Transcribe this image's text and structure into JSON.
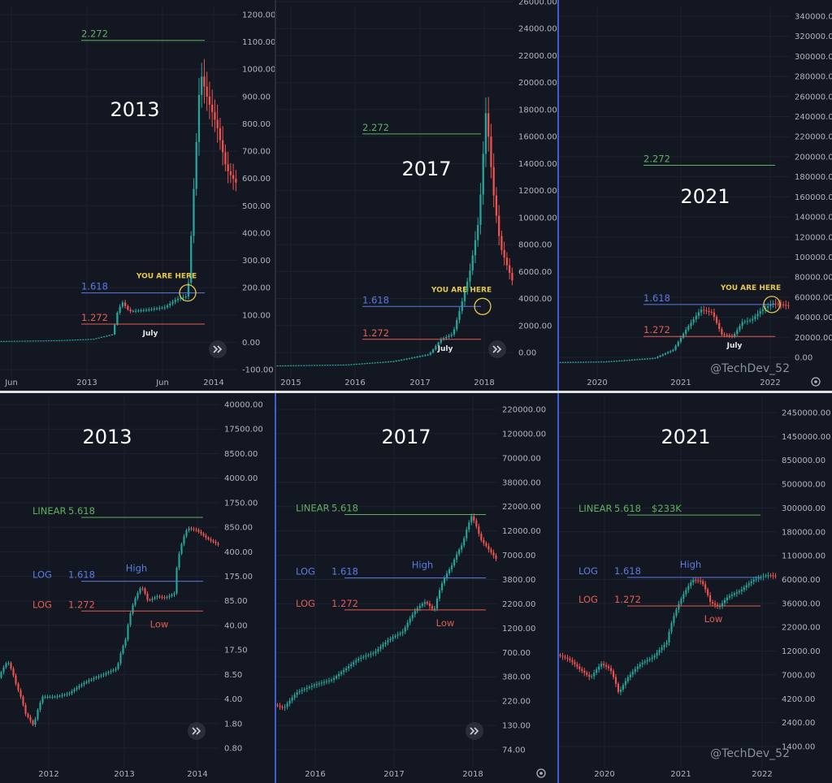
{
  "colors": {
    "background": "#131722",
    "grid": "#1e2230",
    "up": "#26a69a",
    "down": "#ef5350",
    "green_level": "#5fb05f",
    "blue_level": "#5b7be0",
    "red_level": "#e25d52",
    "yellow": "#e6c84a",
    "separator": "#3f5fd6",
    "divider": "#e0e0e0",
    "axis_text": "#b2b5be"
  },
  "watermark": "@TechDev_52",
  "chart_data": [
    {
      "type": "candlestick",
      "scale": "linear",
      "title": "2013",
      "ylim": [
        -130,
        1240
      ],
      "y_ticks": [
        "1200.00",
        "1100.00",
        "1000.00",
        "900.00",
        "800.00",
        "700.00",
        "600.00",
        "500.00",
        "400.00",
        "300.00",
        "200.00",
        "100.00",
        "0.00",
        "-100.00"
      ],
      "x_ticks": [
        "Jun",
        "2013",
        "Jun",
        "2014"
      ],
      "levels": [
        {
          "label": "2.272",
          "value": 1115
        },
        {
          "label": "1.618",
          "value": 183
        },
        {
          "label": "1.272",
          "value": 68
        }
      ],
      "annotations": [
        "YOU ARE HERE",
        "July"
      ],
      "price_path": [
        [
          0,
          5
        ],
        [
          0.25,
          8
        ],
        [
          0.4,
          13
        ],
        [
          0.48,
          30
        ],
        [
          0.5,
          110
        ],
        [
          0.52,
          150
        ],
        [
          0.55,
          115
        ],
        [
          0.62,
          120
        ],
        [
          0.7,
          130
        ],
        [
          0.75,
          160
        ],
        [
          0.79,
          170
        ],
        [
          0.8,
          220
        ],
        [
          0.85,
          1000
        ],
        [
          0.88,
          900
        ],
        [
          0.92,
          800
        ],
        [
          0.96,
          640
        ],
        [
          1,
          590
        ]
      ]
    },
    {
      "type": "candlestick",
      "scale": "linear",
      "title": "2017",
      "ylim": [
        -600,
        26500
      ],
      "y_ticks": [
        "26000.00",
        "24000.00",
        "22000.00",
        "20000.00",
        "18000.00",
        "16000.00",
        "14000.00",
        "12000.00",
        "10000.00",
        "8000.00",
        "6000.00",
        "4000.00",
        "2000.00",
        "0.00"
      ],
      "x_ticks": [
        "2015",
        "2016",
        "2017",
        "2018"
      ],
      "levels": [
        {
          "label": "2.272",
          "value": 17200
        },
        {
          "label": "1.618",
          "value": 4600
        },
        {
          "label": "1.272",
          "value": 2200
        }
      ],
      "annotations": [
        "YOU ARE HERE",
        "July"
      ],
      "price_path": [
        [
          0,
          280
        ],
        [
          0.3,
          350
        ],
        [
          0.5,
          600
        ],
        [
          0.65,
          1100
        ],
        [
          0.7,
          2200
        ],
        [
          0.75,
          2600
        ],
        [
          0.78,
          4400
        ],
        [
          0.82,
          7000
        ],
        [
          0.86,
          11000
        ],
        [
          0.89,
          19000
        ],
        [
          0.92,
          13000
        ],
        [
          0.95,
          9000
        ],
        [
          0.98,
          7500
        ],
        [
          1,
          6500
        ]
      ]
    },
    {
      "type": "candlestick",
      "scale": "linear",
      "title": "2021",
      "ylim": [
        -8000,
        352000
      ],
      "y_ticks": [
        "340000.00",
        "320000.00",
        "300000.00",
        "280000.00",
        "260000.00",
        "240000.00",
        "220000.00",
        "200000.00",
        "180000.00",
        "160000.00",
        "140000.00",
        "120000.00",
        "100000.00",
        "80000.00",
        "60000.00",
        "40000.00",
        "20000.00",
        "0.00"
      ],
      "x_ticks": [
        "2020",
        "2021",
        "2022"
      ],
      "levels": [
        {
          "label": "2.272",
          "value": 198000
        },
        {
          "label": "1.618",
          "value": 63000
        },
        {
          "label": "1.272",
          "value": 32000
        }
      ],
      "annotations": [
        "YOU ARE HERE",
        "July"
      ],
      "price_path": [
        [
          0,
          7000
        ],
        [
          0.2,
          7500
        ],
        [
          0.3,
          9000
        ],
        [
          0.42,
          11000
        ],
        [
          0.5,
          19000
        ],
        [
          0.56,
          40000
        ],
        [
          0.62,
          58000
        ],
        [
          0.67,
          55000
        ],
        [
          0.71,
          34000
        ],
        [
          0.76,
          32000
        ],
        [
          0.8,
          46000
        ],
        [
          0.84,
          48000
        ],
        [
          0.88,
          57000
        ],
        [
          0.93,
          64000
        ],
        [
          1,
          62000
        ]
      ]
    },
    {
      "type": "candlestick",
      "scale": "log",
      "title": "2013",
      "ylim": [
        0.55,
        52000
      ],
      "y_ticks": [
        "40000.00",
        "17500.00",
        "8500.00",
        "4000.00",
        "1750.00",
        "850.00",
        "400.00",
        "175.00",
        "85.00",
        "40.00",
        "17.50",
        "8.50",
        "4.00",
        "1.80",
        "0.80"
      ],
      "x_ticks": [
        "2012",
        "2013",
        "2014"
      ],
      "levels": [
        {
          "prefix": "LINEAR",
          "label": "5.618",
          "value": 1250
        },
        {
          "prefix": "LOG",
          "label": "1.618",
          "value": 175
        },
        {
          "prefix": "LOG",
          "label": "1.272",
          "value": 70
        }
      ],
      "annotations": [
        "High",
        "Low"
      ],
      "price_path": [
        [
          0,
          9
        ],
        [
          0.04,
          15
        ],
        [
          0.08,
          7
        ],
        [
          0.12,
          3
        ],
        [
          0.16,
          2
        ],
        [
          0.2,
          5
        ],
        [
          0.26,
          5
        ],
        [
          0.32,
          5.5
        ],
        [
          0.4,
          8
        ],
        [
          0.48,
          10
        ],
        [
          0.54,
          12
        ],
        [
          0.58,
          30
        ],
        [
          0.62,
          100
        ],
        [
          0.65,
          150
        ],
        [
          0.68,
          95
        ],
        [
          0.72,
          110
        ],
        [
          0.76,
          105
        ],
        [
          0.8,
          120
        ],
        [
          0.86,
          900
        ],
        [
          0.9,
          850
        ],
        [
          0.95,
          650
        ],
        [
          1,
          540
        ]
      ]
    },
    {
      "type": "candlestick",
      "scale": "log",
      "title": "2017",
      "ylim": [
        55,
        300000
      ],
      "y_ticks": [
        "220000.00",
        "120000.00",
        "70000.00",
        "38000.00",
        "22000.00",
        "12000.00",
        "7000.00",
        "3800.00",
        "2200.00",
        "1200.00",
        "700.00",
        "380.00",
        "220.00",
        "130.00",
        "74.00"
      ],
      "x_ticks": [
        "2016",
        "2017",
        "2018"
      ],
      "levels": [
        {
          "prefix": "LINEAR",
          "label": "5.618",
          "value": 19500
        },
        {
          "prefix": "LOG",
          "label": "1.618",
          "value": 4500
        },
        {
          "prefix": "LOG",
          "label": "1.272",
          "value": 2150
        }
      ],
      "annotations": [
        "High",
        "Low"
      ],
      "price_path": [
        [
          0,
          240
        ],
        [
          0.04,
          220
        ],
        [
          0.1,
          320
        ],
        [
          0.18,
          380
        ],
        [
          0.26,
          430
        ],
        [
          0.32,
          550
        ],
        [
          0.38,
          700
        ],
        [
          0.45,
          800
        ],
        [
          0.52,
          1100
        ],
        [
          0.58,
          1300
        ],
        [
          0.64,
          2200
        ],
        [
          0.68,
          2600
        ],
        [
          0.72,
          2100
        ],
        [
          0.76,
          4200
        ],
        [
          0.8,
          6000
        ],
        [
          0.85,
          10000
        ],
        [
          0.89,
          19000
        ],
        [
          0.93,
          11000
        ],
        [
          0.97,
          8500
        ],
        [
          1,
          7000
        ]
      ]
    },
    {
      "type": "candlestick",
      "scale": "log",
      "title": "2021",
      "ylim": [
        1000,
        3000000
      ],
      "y_ticks": [
        "2450000.00",
        "1450000.00",
        "850000.00",
        "500000.00",
        "300000.00",
        "180000.00",
        "110000.00",
        "60000.00",
        "36000.00",
        "22000.00",
        "12000.00",
        "7000.00",
        "4200.00",
        "2400.00",
        "1400.00"
      ],
      "x_ticks": [
        "2020",
        "2021",
        "2022"
      ],
      "levels": [
        {
          "prefix": "LINEAR",
          "label": "5.618",
          "tag": "$233K",
          "value": 233000
        },
        {
          "prefix": "LOG",
          "label": "1.618",
          "value": 61000
        },
        {
          "prefix": "LOG",
          "label": "1.272",
          "value": 33000
        }
      ],
      "annotations": [
        "High",
        "Low"
      ],
      "price_path": [
        [
          0,
          11500
        ],
        [
          0.05,
          10500
        ],
        [
          0.1,
          8500
        ],
        [
          0.15,
          7000
        ],
        [
          0.2,
          9500
        ],
        [
          0.24,
          8500
        ],
        [
          0.28,
          5000
        ],
        [
          0.32,
          7000
        ],
        [
          0.38,
          9500
        ],
        [
          0.44,
          11000
        ],
        [
          0.5,
          15000
        ],
        [
          0.56,
          36000
        ],
        [
          0.62,
          58000
        ],
        [
          0.66,
          56000
        ],
        [
          0.7,
          36000
        ],
        [
          0.74,
          32000
        ],
        [
          0.78,
          40000
        ],
        [
          0.84,
          46000
        ],
        [
          0.9,
          58000
        ],
        [
          0.96,
          64000
        ],
        [
          1,
          63000
        ]
      ]
    }
  ]
}
